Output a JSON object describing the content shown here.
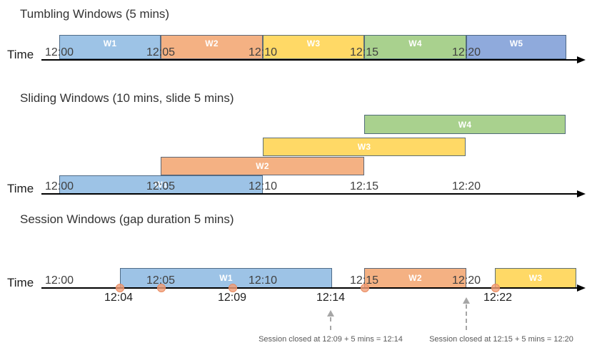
{
  "palette": {
    "blue": "#9DC3E6",
    "orange": "#F4B183",
    "yellow": "#FFD966",
    "green": "#A9D18E",
    "blue2": "#8FAADC",
    "box_border": "rgba(66,92,118,0.85)",
    "axis_black": "#000000",
    "tick_text": "#3f3f3f",
    "dot_fill": "rgba(241,158,119,0.8)",
    "dot_border": "#E98A5F",
    "annotation_text": "#595959",
    "arrow_gray": "#a6a6a6"
  },
  "tumbling": {
    "title": "Tumbling Windows (5 mins)",
    "time_label": "Time",
    "ticks": [
      "12:00",
      "12:05",
      "12:10",
      "12:15",
      "12:20"
    ],
    "windows": [
      {
        "label": "W1",
        "color": "blue",
        "start": "12:00",
        "end": "12:05"
      },
      {
        "label": "W2",
        "color": "orange",
        "start": "12:05",
        "end": "12:10"
      },
      {
        "label": "W3",
        "color": "yellow",
        "start": "12:10",
        "end": "12:15"
      },
      {
        "label": "W4",
        "color": "green",
        "start": "12:15",
        "end": "12:20"
      },
      {
        "label": "W5",
        "color": "blue2",
        "start": "12:20",
        "end": ""
      }
    ]
  },
  "sliding": {
    "title": "Sliding Windows (10 mins, slide 5 mins)",
    "time_label": "Time",
    "ticks": [
      "12:00",
      "12:05",
      "12:10",
      "12:15",
      "12:20"
    ],
    "windows": [
      {
        "label": "W1",
        "color": "blue",
        "start": "12:00",
        "end": "12:10"
      },
      {
        "label": "W2",
        "color": "orange",
        "start": "12:05",
        "end": "12:15"
      },
      {
        "label": "W3",
        "color": "yellow",
        "start": "12:10",
        "end": "12:20"
      },
      {
        "label": "W4",
        "color": "green",
        "start": "12:15",
        "end": ""
      }
    ]
  },
  "session": {
    "title": "Session Windows (gap duration 5 mins)",
    "time_label": "Time",
    "ticks": [
      "12:00",
      "12:05",
      "12:10",
      "12:15",
      "12:20"
    ],
    "windows": [
      {
        "label": "W1",
        "color": "blue",
        "start": "12:04",
        "end": "12:14"
      },
      {
        "label": "W2",
        "color": "orange",
        "start": "12:15",
        "end": "12:20"
      },
      {
        "label": "W3",
        "color": "yellow",
        "start": "12:22",
        "end": ""
      }
    ],
    "event_dots": [
      "12:04",
      "12:05",
      "12:09",
      "12:15",
      "12:22"
    ],
    "event_labels": [
      "12:04",
      "12:09",
      "12:14",
      "12:22"
    ],
    "annotations": [
      "Session closed at 12:09 + 5 mins = 12:14",
      "Session closed at 12:15 + 5 mins = 12:20"
    ]
  }
}
